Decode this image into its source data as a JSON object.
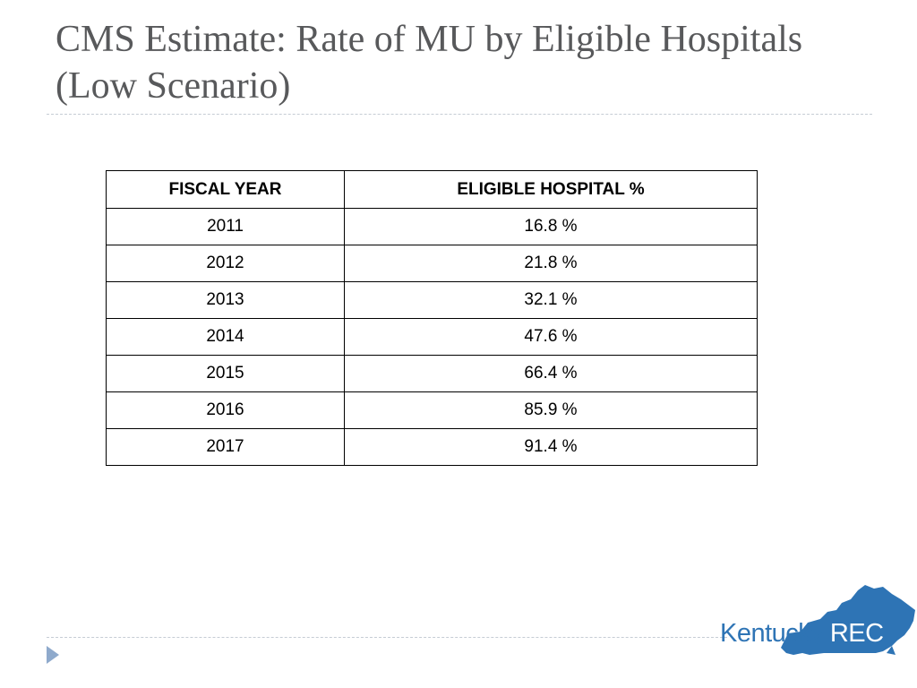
{
  "slide": {
    "title": "CMS Estimate: Rate of MU by Eligible Hospitals (Low Scenario)"
  },
  "table": {
    "headers": {
      "fiscal_year": "FISCAL YEAR",
      "eligible_hospital": "ELIGIBLE HOSPITAL %"
    },
    "rows": [
      {
        "year": "2011",
        "percent": "16.8 %"
      },
      {
        "year": "2012",
        "percent": "21.8 %"
      },
      {
        "year": "2013",
        "percent": "32.1 %"
      },
      {
        "year": "2014",
        "percent": "47.6 %"
      },
      {
        "year": "2015",
        "percent": "66.4 %"
      },
      {
        "year": "2016",
        "percent": "85.9 %"
      },
      {
        "year": "2017",
        "percent": "91.4 %"
      }
    ]
  },
  "logo": {
    "text_part_a": "Kentucky",
    "text_part_b": " REC",
    "map_color": "#2e74b5"
  },
  "colors": {
    "title": "#58595b",
    "rule": "#c6ccd4",
    "arrow": "#8faacc"
  }
}
